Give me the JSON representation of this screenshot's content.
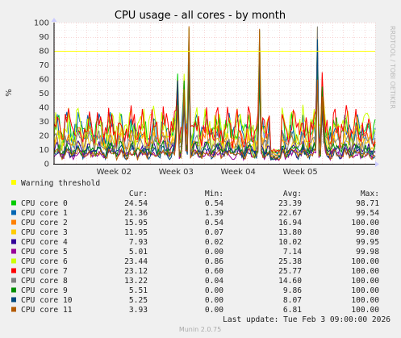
{
  "chart_data": {
    "type": "line",
    "title": "CPU usage - all cores - by month",
    "ylabel": "%",
    "ylim": [
      0,
      100
    ],
    "y_ticks": [
      "0",
      "10",
      "20",
      "30",
      "40",
      "50",
      "60",
      "70",
      "80",
      "90",
      "100"
    ],
    "x_ticks": [
      "Week 02",
      "Week 03",
      "Week 04",
      "Week 05"
    ],
    "warning": {
      "label": "Warning threshold",
      "value": 80,
      "color": "#ffff00"
    },
    "side_text": "RRDTOOL / TOBI OETIKER",
    "columns": [
      "Cur:",
      "Min:",
      "Avg:",
      "Max:"
    ],
    "series": [
      {
        "name": "CPU core 0",
        "color": "#00cc00",
        "cur": "24.54",
        "min": "0.54",
        "avg": "23.39",
        "max": "98.71",
        "base": 23.4
      },
      {
        "name": "CPU core 1",
        "color": "#0066b3",
        "cur": "21.36",
        "min": "1.39",
        "avg": "22.67",
        "max": "99.54",
        "base": 22.7
      },
      {
        "name": "CPU core 2",
        "color": "#ff8000",
        "cur": "15.95",
        "min": "0.54",
        "avg": "16.94",
        "max": "100.00",
        "base": 16.9
      },
      {
        "name": "CPU core 3",
        "color": "#ffcc00",
        "cur": "11.95",
        "min": "0.07",
        "avg": "13.80",
        "max": "99.80",
        "base": 13.8
      },
      {
        "name": "CPU core 4",
        "color": "#330099",
        "cur": "7.93",
        "min": "0.02",
        "avg": "10.02",
        "max": "99.95",
        "base": 10.0
      },
      {
        "name": "CPU core 5",
        "color": "#990099",
        "cur": "5.01",
        "min": "0.00",
        "avg": "7.14",
        "max": "99.98",
        "base": 7.1
      },
      {
        "name": "CPU core 6",
        "color": "#ccff00",
        "cur": "23.44",
        "min": "0.86",
        "avg": "25.38",
        "max": "100.00",
        "base": 25.4
      },
      {
        "name": "CPU core 7",
        "color": "#ff0000",
        "cur": "23.12",
        "min": "0.60",
        "avg": "25.77",
        "max": "100.00",
        "base": 25.8
      },
      {
        "name": "CPU core 8",
        "color": "#808080",
        "cur": "13.22",
        "min": "0.04",
        "avg": "14.60",
        "max": "100.00",
        "base": 14.6
      },
      {
        "name": "CPU core 9",
        "color": "#008f00",
        "cur": "5.51",
        "min": "0.00",
        "avg": "9.86",
        "max": "100.00",
        "base": 9.9
      },
      {
        "name": "CPU core 10",
        "color": "#00487d",
        "cur": "5.25",
        "min": "0.00",
        "avg": "8.07",
        "max": "100.00",
        "base": 8.1
      },
      {
        "name": "CPU core 11",
        "color": "#b35a00",
        "cur": "3.93",
        "min": "0.00",
        "avg": "6.81",
        "max": "100.00",
        "base": 6.8
      }
    ],
    "grid": true,
    "legend": "bottom"
  },
  "footer": {
    "last_update": "Last update: Tue Feb  3 09:00:00 2026",
    "munin": "Munin 2.0.75"
  }
}
